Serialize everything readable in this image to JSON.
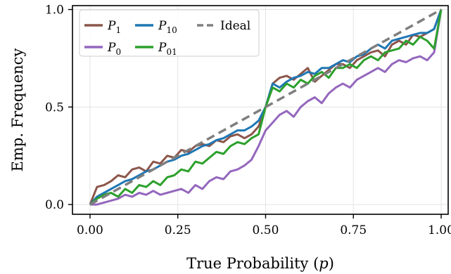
{
  "chart_data": {
    "type": "line",
    "xlabel_prefix": "True Probability (",
    "xlabel_var": "p",
    "xlabel_suffix": ")",
    "ylabel": "Emp. Frequency",
    "xlim": [
      -0.05,
      1.02
    ],
    "ylim": [
      -0.05,
      1.02
    ],
    "xticks": [
      0.0,
      0.25,
      0.5,
      0.75,
      1.0
    ],
    "xtick_labels": [
      "0.00",
      "0.25",
      "0.50",
      "0.75",
      "1.00"
    ],
    "yticks": [
      0.0,
      0.5,
      1.0
    ],
    "ytick_labels": [
      "0.0",
      "0.5",
      "1.0"
    ],
    "grid": true,
    "legend_position": "top-left",
    "legend": [
      {
        "base": "P",
        "sub": "1",
        "color": "#8c564b",
        "style": "solid"
      },
      {
        "base": "P",
        "sub": "10",
        "color": "#1f77b4",
        "style": "solid"
      },
      {
        "base": "Ideal",
        "sub": "",
        "color": "#7f7f7f",
        "style": "dashed"
      },
      {
        "base": "P",
        "sub": "0",
        "color": "#9467bd",
        "style": "solid"
      },
      {
        "base": "P",
        "sub": "01",
        "color": "#2ca02c",
        "style": "solid"
      }
    ],
    "series": [
      {
        "name": "P1",
        "color": "#8c564b",
        "dashed": false,
        "x": [
          0,
          0.02,
          0.04,
          0.06,
          0.08,
          0.1,
          0.12,
          0.14,
          0.16,
          0.18,
          0.2,
          0.22,
          0.24,
          0.26,
          0.28,
          0.3,
          0.32,
          0.34,
          0.36,
          0.38,
          0.4,
          0.42,
          0.44,
          0.46,
          0.48,
          0.5,
          0.52,
          0.54,
          0.56,
          0.58,
          0.6,
          0.62,
          0.64,
          0.66,
          0.68,
          0.7,
          0.72,
          0.74,
          0.76,
          0.78,
          0.8,
          0.82,
          0.84,
          0.86,
          0.88,
          0.9,
          0.92,
          0.94,
          0.96,
          0.98,
          1.0
        ],
        "y": [
          0.0,
          0.09,
          0.1,
          0.12,
          0.15,
          0.14,
          0.18,
          0.19,
          0.17,
          0.22,
          0.21,
          0.25,
          0.24,
          0.28,
          0.27,
          0.3,
          0.31,
          0.3,
          0.33,
          0.32,
          0.35,
          0.36,
          0.34,
          0.36,
          0.4,
          0.5,
          0.62,
          0.65,
          0.66,
          0.64,
          0.67,
          0.7,
          0.63,
          0.66,
          0.69,
          0.72,
          0.72,
          0.7,
          0.74,
          0.76,
          0.78,
          0.79,
          0.76,
          0.82,
          0.84,
          0.82,
          0.87,
          0.86,
          0.88,
          0.9,
          1.0
        ]
      },
      {
        "name": "P0",
        "color": "#9467bd",
        "dashed": false,
        "x": [
          0,
          0.02,
          0.04,
          0.06,
          0.08,
          0.1,
          0.12,
          0.14,
          0.16,
          0.18,
          0.2,
          0.22,
          0.24,
          0.26,
          0.28,
          0.3,
          0.32,
          0.34,
          0.36,
          0.38,
          0.4,
          0.42,
          0.44,
          0.46,
          0.48,
          0.5,
          0.52,
          0.54,
          0.56,
          0.58,
          0.6,
          0.62,
          0.64,
          0.66,
          0.68,
          0.7,
          0.72,
          0.74,
          0.76,
          0.78,
          0.8,
          0.82,
          0.84,
          0.86,
          0.88,
          0.9,
          0.92,
          0.94,
          0.96,
          0.98,
          1.0
        ],
        "y": [
          0.0,
          0.0,
          0.01,
          0.02,
          0.03,
          0.05,
          0.04,
          0.06,
          0.05,
          0.07,
          0.05,
          0.06,
          0.07,
          0.08,
          0.06,
          0.1,
          0.08,
          0.12,
          0.14,
          0.13,
          0.17,
          0.18,
          0.2,
          0.23,
          0.3,
          0.38,
          0.42,
          0.46,
          0.48,
          0.45,
          0.5,
          0.53,
          0.55,
          0.52,
          0.57,
          0.6,
          0.62,
          0.6,
          0.64,
          0.66,
          0.68,
          0.7,
          0.68,
          0.72,
          0.74,
          0.73,
          0.75,
          0.76,
          0.74,
          0.78,
          1.0
        ]
      },
      {
        "name": "P10",
        "color": "#1f77b4",
        "dashed": false,
        "x": [
          0,
          0.02,
          0.04,
          0.06,
          0.08,
          0.1,
          0.12,
          0.14,
          0.16,
          0.18,
          0.2,
          0.22,
          0.24,
          0.26,
          0.28,
          0.3,
          0.32,
          0.34,
          0.36,
          0.38,
          0.4,
          0.42,
          0.44,
          0.46,
          0.48,
          0.5,
          0.52,
          0.54,
          0.56,
          0.58,
          0.6,
          0.62,
          0.64,
          0.66,
          0.68,
          0.7,
          0.72,
          0.74,
          0.76,
          0.78,
          0.8,
          0.82,
          0.84,
          0.86,
          0.88,
          0.9,
          0.92,
          0.94,
          0.96,
          0.98,
          1.0
        ],
        "y": [
          0.0,
          0.04,
          0.06,
          0.08,
          0.1,
          0.12,
          0.13,
          0.15,
          0.17,
          0.18,
          0.2,
          0.22,
          0.23,
          0.25,
          0.26,
          0.28,
          0.3,
          0.31,
          0.33,
          0.34,
          0.36,
          0.38,
          0.38,
          0.4,
          0.43,
          0.5,
          0.62,
          0.6,
          0.63,
          0.65,
          0.66,
          0.68,
          0.67,
          0.7,
          0.7,
          0.72,
          0.74,
          0.73,
          0.76,
          0.77,
          0.8,
          0.82,
          0.8,
          0.84,
          0.85,
          0.86,
          0.87,
          0.88,
          0.88,
          0.9,
          1.0
        ]
      },
      {
        "name": "P01",
        "color": "#2ca02c",
        "dashed": false,
        "x": [
          0,
          0.02,
          0.04,
          0.06,
          0.08,
          0.1,
          0.12,
          0.14,
          0.16,
          0.18,
          0.2,
          0.22,
          0.24,
          0.26,
          0.28,
          0.3,
          0.32,
          0.34,
          0.36,
          0.38,
          0.4,
          0.42,
          0.44,
          0.46,
          0.48,
          0.5,
          0.52,
          0.54,
          0.56,
          0.58,
          0.6,
          0.62,
          0.64,
          0.66,
          0.68,
          0.7,
          0.72,
          0.74,
          0.76,
          0.78,
          0.8,
          0.82,
          0.84,
          0.86,
          0.88,
          0.9,
          0.92,
          0.94,
          0.96,
          0.98,
          1.0
        ],
        "y": [
          0.0,
          0.03,
          0.05,
          0.06,
          0.04,
          0.08,
          0.06,
          0.1,
          0.09,
          0.12,
          0.1,
          0.14,
          0.15,
          0.18,
          0.17,
          0.22,
          0.21,
          0.24,
          0.27,
          0.26,
          0.3,
          0.32,
          0.31,
          0.34,
          0.36,
          0.5,
          0.6,
          0.58,
          0.62,
          0.6,
          0.64,
          0.62,
          0.66,
          0.68,
          0.65,
          0.7,
          0.7,
          0.72,
          0.7,
          0.74,
          0.76,
          0.74,
          0.78,
          0.79,
          0.8,
          0.84,
          0.82,
          0.86,
          0.84,
          0.8,
          1.0
        ]
      },
      {
        "name": "Ideal",
        "color": "#7f7f7f",
        "dashed": true,
        "x": [
          0.0,
          1.0
        ],
        "y": [
          0.0,
          1.0
        ]
      }
    ]
  }
}
